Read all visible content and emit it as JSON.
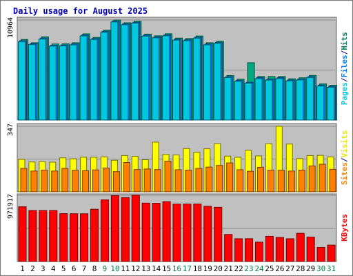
{
  "chart_data": {
    "type": "bar",
    "title": "Daily usage for August 2025",
    "days": [
      "1",
      "2",
      "3",
      "4",
      "5",
      "6",
      "7",
      "8",
      "9",
      "10",
      "11",
      "12",
      "13",
      "14",
      "15",
      "16",
      "17",
      "18",
      "19",
      "20",
      "21",
      "22",
      "23",
      "24",
      "25",
      "26",
      "27",
      "28",
      "29",
      "30",
      "31"
    ],
    "weekend_days": [
      9,
      10,
      16,
      17,
      23,
      24,
      30,
      31
    ],
    "panels": [
      {
        "id": "hits",
        "max_label": "10964",
        "max": 10964,
        "legend": [
          "Pages",
          "/",
          "Files",
          "/",
          "Hits"
        ],
        "legend_colors": [
          "#00c8e0",
          "#000080",
          "#0080ff",
          "#000080",
          "#008060"
        ],
        "series": [
          {
            "name": "Hits",
            "color": "#00a880",
            "values": [
              8830,
              8470,
              9120,
              8340,
              8360,
              8470,
              9450,
              9060,
              9850,
              10964,
              10660,
              10840,
              9420,
              9230,
              9460,
              8980,
              8930,
              9210,
              8470,
              8640,
              4880,
              4480,
              6280,
              4770,
              4770,
              4770,
              4520,
              4630,
              4890,
              3960,
              3820
            ]
          },
          {
            "name": "Files",
            "color": "#0080ff",
            "values": [
              8700,
              8370,
              8980,
              8200,
              8230,
              8340,
              9320,
              8930,
              9720,
              10850,
              10540,
              10720,
              9300,
              9110,
              9330,
              8860,
              8800,
              9080,
              8340,
              8510,
              4750,
              4340,
              4140,
              4640,
              4480,
              4640,
              4390,
              4490,
              4760,
              3830,
              3690
            ]
          },
          {
            "name": "Pages",
            "color": "#00c8e0",
            "values": [
              8600,
              8270,
              8880,
              8100,
              8130,
              8240,
              9220,
              8830,
              9620,
              10750,
              10440,
              10620,
              9200,
              9010,
              9230,
              8760,
              8700,
              8980,
              8240,
              8410,
              4650,
              4240,
              4040,
              4540,
              4380,
              4540,
              4290,
              4390,
              4660,
              3730,
              3590
            ]
          }
        ]
      },
      {
        "id": "visits",
        "max_label": "347",
        "max": 347,
        "legend": [
          "Sites",
          "/",
          "Visits"
        ],
        "legend_colors": [
          "#ff8000",
          "#000080",
          "#e8e800"
        ],
        "series": [
          {
            "name": "Visits",
            "color": "#ffff00",
            "values": [
              172,
              158,
              160,
              157,
              180,
              175,
              183,
              183,
              185,
              167,
              192,
              188,
              170,
              263,
              198,
              195,
              229,
              209,
              228,
              255,
              189,
              183,
              220,
              190,
              255,
              347,
              253,
              176,
              192,
              193,
              185
            ]
          },
          {
            "name": "Sites",
            "color": "#ff8000",
            "values": [
              124,
              110,
              115,
              110,
              124,
              114,
              112,
              116,
              126,
              107,
              155,
              118,
              121,
              118,
              162,
              117,
              115,
              124,
              131,
              140,
              153,
              117,
              109,
              130,
              115,
              114,
              110,
              115,
              137,
              146,
              119
            ]
          }
        ]
      },
      {
        "id": "kbytes",
        "max_label": "971917",
        "max": 971917,
        "legend": [
          "KBytes"
        ],
        "legend_colors": [
          "#ff0000"
        ],
        "series": [
          {
            "name": "KBytes",
            "color": "#ff0000",
            "values": [
              803000,
              748000,
              748000,
              748000,
              702000,
              701000,
              700000,
              767000,
              904000,
              966000,
              938000,
              971917,
              857000,
              855000,
              878000,
              842000,
              843000,
              843000,
              810000,
              796000,
              397000,
              334000,
              335000,
              284000,
              370000,
              353000,
              334000,
              414000,
              358000,
              207000,
              241000
            ]
          }
        ]
      }
    ]
  }
}
